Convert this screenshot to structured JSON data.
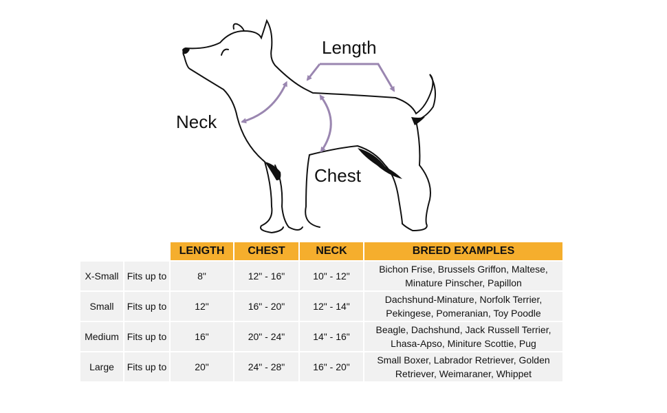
{
  "labels": {
    "length": "Length",
    "neck": "Neck",
    "chest": "Chest"
  },
  "colors": {
    "arrow": "#9a86b0",
    "header": "#f5ae2d",
    "cell": "#f1f1f1"
  },
  "table": {
    "headers": [
      "LENGTH",
      "CHEST",
      "NECK",
      "BREED EXAMPLES"
    ],
    "rows": [
      {
        "size": "X-Small",
        "fit": "Fits up to",
        "length": "8\"",
        "chest": "12\" - 16\"",
        "neck": "10\" - 12\"",
        "breeds_1": "Bichon Frise, Brussels Griffon, Maltese,",
        "breeds_2": "Minature Pinscher, Papillon"
      },
      {
        "size": "Small",
        "fit": "Fits up to",
        "length": "12\"",
        "chest": "16\" - 20\"",
        "neck": "12\" - 14\"",
        "breeds_1": "Dachshund-Minature, Norfolk Terrier,",
        "breeds_2": "Pekingese, Pomeranian, Toy Poodle"
      },
      {
        "size": "Medium",
        "fit": "Fits up to",
        "length": "16\"",
        "chest": "20\" - 24\"",
        "neck": "14\" - 16\"",
        "breeds_1": "Beagle, Dachshund, Jack Russell Terrier,",
        "breeds_2": "Lhasa-Apso, Miniture Scottie, Pug"
      },
      {
        "size": "Large",
        "fit": "Fits up to",
        "length": "20\"",
        "chest": "24\" - 28\"",
        "neck": "16\" - 20\"",
        "breeds_1": "Small Boxer, Labrador Retriever, Golden",
        "breeds_2": "Retriever, Weimaraner, Whippet"
      }
    ]
  }
}
